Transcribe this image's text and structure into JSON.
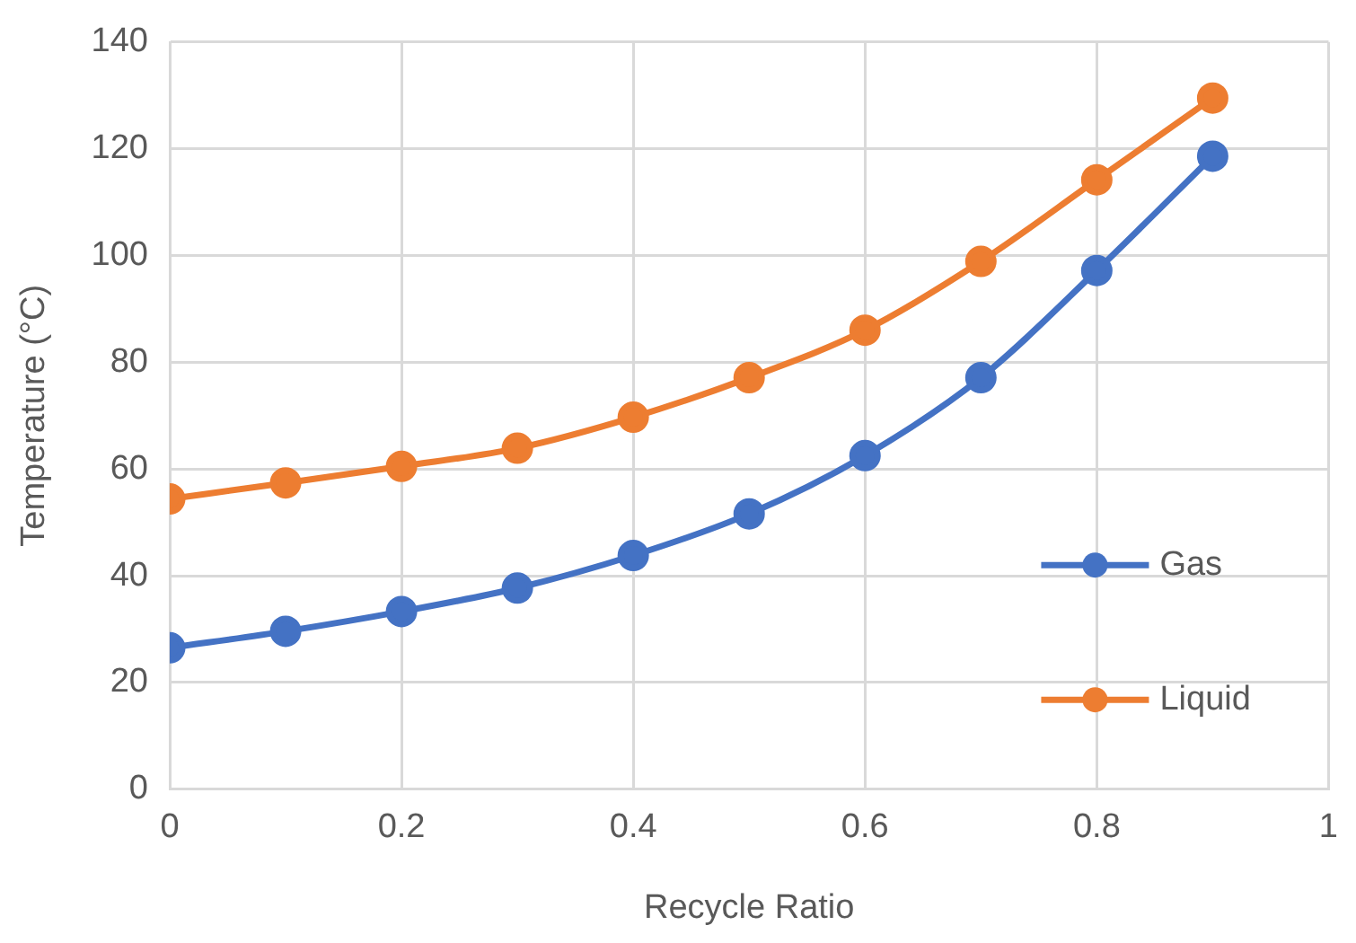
{
  "chart_data": {
    "type": "line",
    "xlabel": "Recycle Ratio",
    "ylabel": "Temperature (°C)",
    "x": [
      0,
      0.1,
      0.2,
      0.3,
      0.4,
      0.5,
      0.6,
      0.7,
      0.8,
      0.9
    ],
    "series": [
      {
        "name": "Gas",
        "color": "#4472c4",
        "values": [
          26.5,
          29.6,
          33.3,
          37.7,
          43.8,
          51.6,
          62.5,
          77.1,
          97.2,
          118.6
        ]
      },
      {
        "name": "Liquid",
        "color": "#ed7d31",
        "values": [
          54.4,
          57.4,
          60.5,
          63.9,
          69.7,
          77.1,
          86,
          98.9,
          114.2,
          129.5
        ]
      }
    ],
    "xlim": [
      0,
      1
    ],
    "xticks": [
      0,
      0.2,
      0.4,
      0.6,
      0.8,
      1
    ],
    "ylim": [
      0,
      140
    ],
    "yticks": [
      0,
      20,
      40,
      60,
      80,
      100,
      120,
      140
    ],
    "grid": true,
    "legend": "right",
    "marker": "circle",
    "line_style": "solid"
  }
}
